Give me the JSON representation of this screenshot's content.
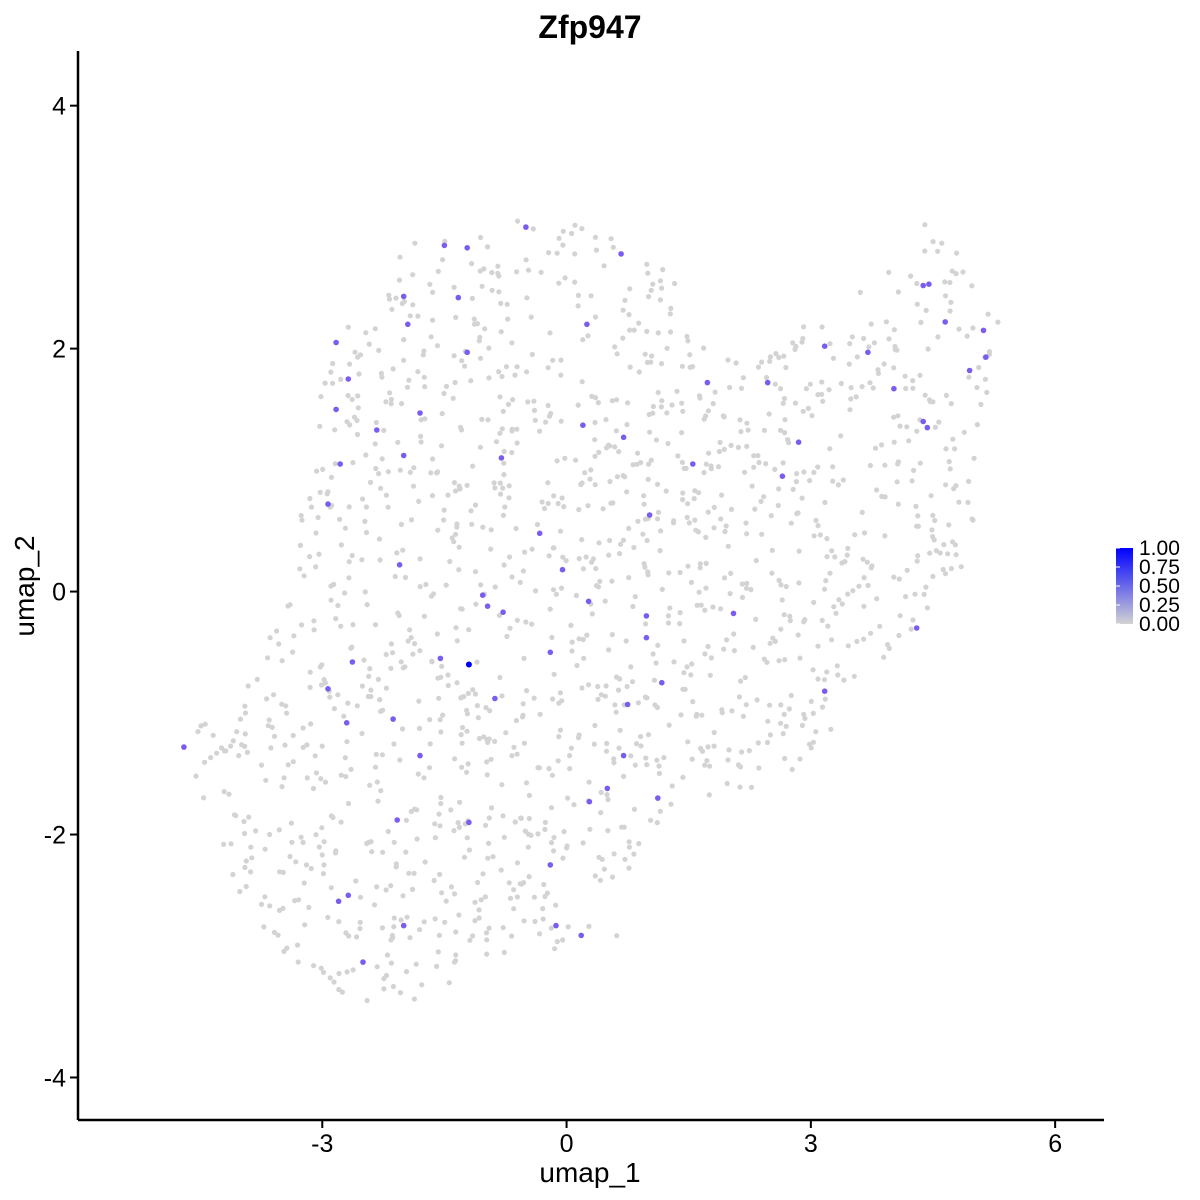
{
  "chart_data": {
    "type": "scatter",
    "title": "Zfp947",
    "xlabel": "umap_1",
    "ylabel": "umap_2",
    "xlim": [
      -6.0,
      6.6
    ],
    "ylim": [
      -4.35,
      4.45
    ],
    "x_ticks": [
      -3,
      0,
      3,
      6
    ],
    "x_tick_labels": [
      "-3",
      "0",
      "3",
      "6"
    ],
    "y_ticks": [
      -4,
      -2,
      0,
      2,
      4
    ],
    "y_tick_labels": [
      "-4",
      "-2",
      "0",
      "2",
      "4"
    ],
    "grid": false,
    "legend": {
      "placement": "right",
      "type": "colorbar",
      "labels": [
        "1.00",
        "0.75",
        "0.50",
        "0.25",
        "0.00"
      ],
      "values": [
        1.0,
        0.75,
        0.5,
        0.25,
        0.0
      ],
      "low_color": "#d3d3d3",
      "high_color": "#0000ff"
    },
    "colors": {
      "low": "#d3d3d3",
      "mid": "#7b5cf0",
      "high": "#0000ff"
    },
    "background_cells": {
      "description_n": 1500,
      "region_polygon": [
        [
          -4.15,
          -2.3
        ],
        [
          -4.4,
          -1.8
        ],
        [
          -4.75,
          -1.2
        ],
        [
          -4.3,
          -1.0
        ],
        [
          -3.6,
          -0.3
        ],
        [
          -3.1,
          1.2
        ],
        [
          -3.0,
          1.7
        ],
        [
          -2.7,
          2.2
        ],
        [
          -2.2,
          2.6
        ],
        [
          -1.9,
          2.9
        ],
        [
          -1.0,
          3.05
        ],
        [
          -0.2,
          3.1
        ],
        [
          0.7,
          2.95
        ],
        [
          1.4,
          2.6
        ],
        [
          1.5,
          2.2
        ],
        [
          2.0,
          1.9
        ],
        [
          2.6,
          2.0
        ],
        [
          3.1,
          2.3
        ],
        [
          3.7,
          2.5
        ],
        [
          4.2,
          2.75
        ],
        [
          4.4,
          3.05
        ],
        [
          4.8,
          2.8
        ],
        [
          5.1,
          2.6
        ],
        [
          5.35,
          2.45
        ],
        [
          5.35,
          1.8
        ],
        [
          5.1,
          1.5
        ],
        [
          5.15,
          0.9
        ],
        [
          5.0,
          0.3
        ],
        [
          4.5,
          -0.2
        ],
        [
          3.8,
          -0.7
        ],
        [
          3.2,
          -1.2
        ],
        [
          2.6,
          -1.6
        ],
        [
          1.7,
          -1.75
        ],
        [
          1.0,
          -2.1
        ],
        [
          0.8,
          -2.8
        ],
        [
          0.0,
          -2.95
        ],
        [
          -0.8,
          -3.0
        ],
        [
          -1.6,
          -3.3
        ],
        [
          -2.3,
          -3.5
        ],
        [
          -3.3,
          -3.1
        ],
        [
          -3.7,
          -2.8
        ],
        [
          -4.0,
          -2.5
        ]
      ]
    },
    "points": [
      {
        "x": -4.7,
        "y": -1.28,
        "v": 0.55
      },
      {
        "x": -2.83,
        "y": 2.05,
        "v": 0.55
      },
      {
        "x": -2.68,
        "y": 1.75,
        "v": 0.55
      },
      {
        "x": -2.83,
        "y": 1.5,
        "v": 0.55
      },
      {
        "x": -2.78,
        "y": 1.05,
        "v": 0.55
      },
      {
        "x": -2.93,
        "y": 0.72,
        "v": 0.55
      },
      {
        "x": -2.63,
        "y": -0.58,
        "v": 0.55
      },
      {
        "x": -2.93,
        "y": -0.8,
        "v": 0.55
      },
      {
        "x": -2.7,
        "y": -1.08,
        "v": 0.55
      },
      {
        "x": -2.8,
        "y": -2.55,
        "v": 0.55
      },
      {
        "x": -2.68,
        "y": -2.5,
        "v": 0.55
      },
      {
        "x": -2.5,
        "y": -3.05,
        "v": 0.55
      },
      {
        "x": -1.5,
        "y": 2.85,
        "v": 0.55
      },
      {
        "x": -1.22,
        "y": 2.83,
        "v": 0.55
      },
      {
        "x": -2.0,
        "y": 2.43,
        "v": 0.55
      },
      {
        "x": -1.33,
        "y": 2.42,
        "v": 0.55
      },
      {
        "x": -1.95,
        "y": 2.2,
        "v": 0.55
      },
      {
        "x": -1.22,
        "y": 1.97,
        "v": 0.55
      },
      {
        "x": -1.8,
        "y": 1.47,
        "v": 0.55
      },
      {
        "x": -2.33,
        "y": 1.33,
        "v": 0.55
      },
      {
        "x": -2.0,
        "y": 1.12,
        "v": 0.55
      },
      {
        "x": -2.05,
        "y": 0.22,
        "v": 0.55
      },
      {
        "x": -1.55,
        "y": -0.55,
        "v": 0.55
      },
      {
        "x": -2.13,
        "y": -1.05,
        "v": 0.55
      },
      {
        "x": -1.8,
        "y": -1.35,
        "v": 0.55
      },
      {
        "x": -2.08,
        "y": -1.88,
        "v": 0.55
      },
      {
        "x": -1.2,
        "y": -1.9,
        "v": 0.55
      },
      {
        "x": -2.0,
        "y": -2.75,
        "v": 0.55
      },
      {
        "x": -1.2,
        "y": -0.6,
        "v": 1.0
      },
      {
        "x": -1.03,
        "y": -0.03,
        "v": 0.55
      },
      {
        "x": -0.97,
        "y": -0.12,
        "v": 0.55
      },
      {
        "x": -0.78,
        "y": -0.17,
        "v": 0.55
      },
      {
        "x": -0.88,
        "y": -0.88,
        "v": 0.55
      },
      {
        "x": -0.8,
        "y": 1.1,
        "v": 0.55
      },
      {
        "x": -0.33,
        "y": 0.48,
        "v": 0.55
      },
      {
        "x": -0.5,
        "y": 3.0,
        "v": 0.55
      },
      {
        "x": 0.25,
        "y": 2.2,
        "v": 0.55
      },
      {
        "x": 0.2,
        "y": 1.37,
        "v": 0.55
      },
      {
        "x": 0.67,
        "y": 2.78,
        "v": 0.55
      },
      {
        "x": 0.7,
        "y": 1.27,
        "v": 0.55
      },
      {
        "x": -0.05,
        "y": 0.18,
        "v": 0.55
      },
      {
        "x": 0.27,
        "y": -0.08,
        "v": 0.55
      },
      {
        "x": -0.2,
        "y": -0.5,
        "v": 0.55
      },
      {
        "x": 0.5,
        "y": -1.62,
        "v": 0.55
      },
      {
        "x": 0.28,
        "y": -1.73,
        "v": 0.55
      },
      {
        "x": 0.7,
        "y": -1.35,
        "v": 0.55
      },
      {
        "x": 0.75,
        "y": -0.93,
        "v": 0.55
      },
      {
        "x": -0.2,
        "y": -2.25,
        "v": 0.55
      },
      {
        "x": -0.13,
        "y": -2.75,
        "v": 0.55
      },
      {
        "x": 0.18,
        "y": -2.83,
        "v": 0.55
      },
      {
        "x": 1.02,
        "y": 0.63,
        "v": 0.55
      },
      {
        "x": 0.98,
        "y": -0.2,
        "v": 0.55
      },
      {
        "x": 0.98,
        "y": -0.38,
        "v": 0.55
      },
      {
        "x": 1.17,
        "y": -0.75,
        "v": 0.55
      },
      {
        "x": 1.12,
        "y": -1.7,
        "v": 0.55
      },
      {
        "x": 1.55,
        "y": 1.05,
        "v": 0.55
      },
      {
        "x": 1.73,
        "y": 1.72,
        "v": 0.55
      },
      {
        "x": 2.05,
        "y": -0.18,
        "v": 0.55
      },
      {
        "x": 2.47,
        "y": 1.72,
        "v": 0.55
      },
      {
        "x": 2.65,
        "y": 0.95,
        "v": 0.55
      },
      {
        "x": 2.85,
        "y": 1.23,
        "v": 0.55
      },
      {
        "x": 3.17,
        "y": 2.02,
        "v": 0.55
      },
      {
        "x": 3.7,
        "y": 1.97,
        "v": 0.55
      },
      {
        "x": 4.02,
        "y": 1.67,
        "v": 0.55
      },
      {
        "x": 3.17,
        "y": -0.82,
        "v": 0.55
      },
      {
        "x": 4.3,
        "y": -0.3,
        "v": 0.55
      },
      {
        "x": 4.38,
        "y": 2.52,
        "v": 0.55
      },
      {
        "x": 4.45,
        "y": 2.53,
        "v": 0.55
      },
      {
        "x": 4.38,
        "y": 1.4,
        "v": 0.55
      },
      {
        "x": 4.43,
        "y": 1.35,
        "v": 0.55
      },
      {
        "x": 4.65,
        "y": 2.22,
        "v": 0.55
      },
      {
        "x": 4.95,
        "y": 1.82,
        "v": 0.55
      },
      {
        "x": 5.12,
        "y": 2.15,
        "v": 0.55
      },
      {
        "x": 5.15,
        "y": 1.93,
        "v": 0.55
      }
    ]
  }
}
